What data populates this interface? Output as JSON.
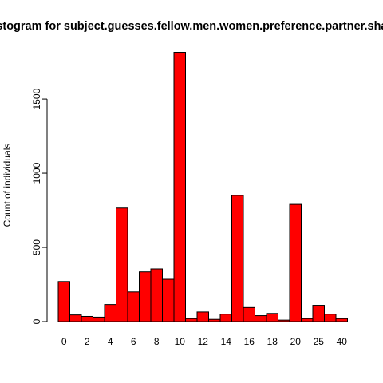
{
  "chart_data": {
    "type": "bar",
    "title": "Histogram for subject.guesses.fellow.men.women.preference.partner.share",
    "xlabel": "",
    "ylabel": "Count of individuals",
    "ylim": [
      0,
      1850
    ],
    "y_ticks": [
      0,
      500,
      1000,
      1500
    ],
    "x_tick_labels": [
      "0",
      "2",
      "4",
      "6",
      "8",
      "10",
      "12",
      "14",
      "16",
      "18",
      "20",
      "25",
      "40"
    ],
    "bar_color": "#ff0000",
    "bar_border_color": "#000000",
    "values": [
      270,
      45,
      35,
      30,
      115,
      765,
      200,
      335,
      355,
      285,
      1815,
      20,
      65,
      15,
      50,
      850,
      95,
      40,
      55,
      10,
      790,
      20,
      110,
      50,
      20
    ],
    "grid": false,
    "legend": "none"
  }
}
